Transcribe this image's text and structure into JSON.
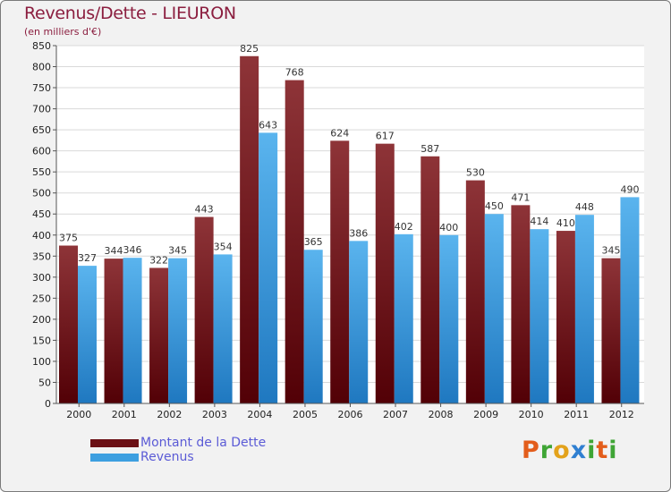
{
  "header": {
    "title": "Revenus/Dette - LIEURON",
    "subtitle": "(en milliers d'€)"
  },
  "chart_data": {
    "type": "bar",
    "title": "Revenus/Dette - LIEURON",
    "ylabel": "(en milliers d'€)",
    "xlabel": "",
    "ylim": [
      0,
      850
    ],
    "yticks": [
      0,
      50,
      100,
      150,
      200,
      250,
      300,
      350,
      400,
      450,
      500,
      550,
      600,
      650,
      700,
      750,
      800,
      850
    ],
    "grid": true,
    "categories": [
      "2000",
      "2001",
      "2002",
      "2003",
      "2004",
      "2005",
      "2006",
      "2007",
      "2008",
      "2009",
      "2010",
      "2011",
      "2012"
    ],
    "series": [
      {
        "name": "Montant de la Dette",
        "color": "#7a1f24",
        "values": [
          375,
          344,
          322,
          443,
          825,
          768,
          624,
          617,
          587,
          530,
          471,
          410,
          345
        ]
      },
      {
        "name": "Revenus",
        "color": "#3d9fe0",
        "values": [
          327,
          346,
          345,
          354,
          643,
          365,
          386,
          402,
          400,
          450,
          414,
          448,
          490
        ]
      }
    ]
  },
  "legend": {
    "items": [
      {
        "label": "Montant de la Dette",
        "color": "#6b1015"
      },
      {
        "label": "Revenus",
        "color": "#3d9fe0"
      }
    ]
  },
  "logo": {
    "letters": [
      "P",
      "r",
      "o",
      "x",
      "i",
      "t",
      "i"
    ],
    "colors": [
      "#e35d1b",
      "#3fa535",
      "#e3a21b",
      "#2f7fd1",
      "#3fa535",
      "#e35d1b",
      "#3fa535"
    ]
  }
}
